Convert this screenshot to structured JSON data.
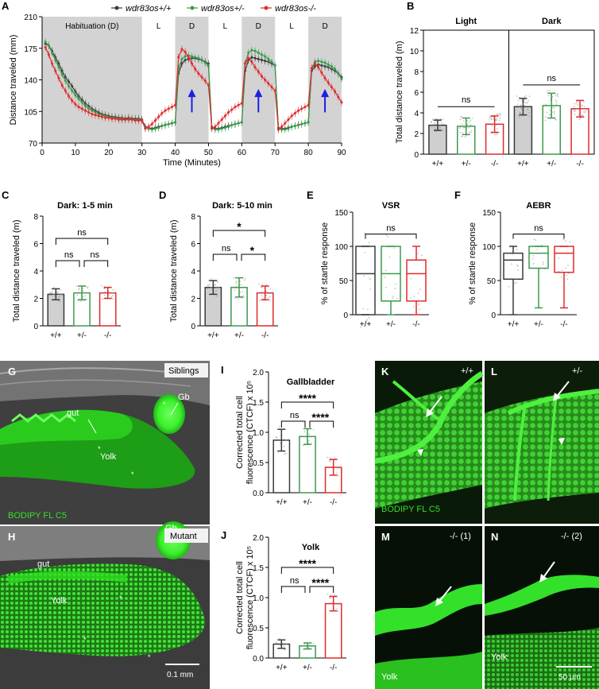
{
  "colors": {
    "wt": "#3a3a3a",
    "het": "#3c9a4c",
    "mut": "#e02a2a",
    "shade": "#d3d3d3",
    "green": "#33e02a",
    "arrow": "#1f1fe0"
  },
  "panels": {
    "A": "A",
    "B": "B",
    "C": "C",
    "D": "D",
    "E": "E",
    "F": "F",
    "G": "G",
    "H": "H",
    "I": "I",
    "J": "J",
    "K": "K",
    "L": "L",
    "M": "M",
    "N": "N"
  },
  "legend": [
    "wdr83os+/+",
    "wdr83os+/-",
    "wdr83os-/-"
  ],
  "genotypes": [
    "+/+",
    "+/-",
    "-/-"
  ],
  "chart_data": [
    {
      "panel": "A",
      "type": "line",
      "ylabel": "Distance traveled (mm)",
      "xlabel": "Time (Minutes)",
      "xlim": [
        0,
        90
      ],
      "ylim": [
        70,
        210
      ],
      "xticks": [
        0,
        10,
        20,
        30,
        40,
        50,
        60,
        70,
        80,
        90
      ],
      "yticks": [
        70,
        105,
        140,
        175,
        210
      ],
      "phases": [
        {
          "label": "Habituation (D)",
          "start": 0,
          "end": 30,
          "dark": true
        },
        {
          "label": "L",
          "start": 30,
          "end": 40,
          "dark": false
        },
        {
          "label": "D",
          "start": 40,
          "end": 50,
          "dark": true
        },
        {
          "label": "L",
          "start": 50,
          "end": 60,
          "dark": false
        },
        {
          "label": "D",
          "start": 60,
          "end": 70,
          "dark": true
        },
        {
          "label": "L",
          "start": 70,
          "end": 80,
          "dark": false
        },
        {
          "label": "D",
          "start": 80,
          "end": 90,
          "dark": true
        }
      ],
      "arrows_x": [
        45,
        65,
        85
      ],
      "series": [
        {
          "name": "wdr83os+/+",
          "values": [
            180,
            178,
            172,
            165,
            158,
            150,
            143,
            138,
            133,
            127,
            122,
            118,
            114,
            111,
            108,
            106,
            104,
            102,
            101,
            100,
            99,
            99,
            98,
            98,
            97,
            98,
            97,
            97,
            97,
            96,
            88,
            87,
            86,
            87,
            88,
            89,
            90,
            91,
            92,
            93,
            147,
            158,
            162,
            163,
            164,
            164,
            163,
            162,
            160,
            158,
            88,
            86,
            86,
            87,
            88,
            89,
            90,
            91,
            92,
            93,
            150,
            162,
            165,
            164,
            163,
            162,
            161,
            160,
            158,
            156,
            87,
            86,
            86,
            87,
            88,
            89,
            90,
            91,
            92,
            93,
            150,
            155,
            157,
            156,
            155,
            154,
            152,
            150,
            147,
            143
          ]
        },
        {
          "name": "wdr83os+/-",
          "values": [
            182,
            178,
            170,
            162,
            154,
            146,
            139,
            133,
            128,
            123,
            119,
            115,
            111,
            108,
            106,
            104,
            102,
            101,
            100,
            99,
            98,
            98,
            97,
            97,
            96,
            97,
            96,
            96,
            96,
            95,
            87,
            86,
            85,
            86,
            87,
            89,
            90,
            91,
            92,
            93,
            153,
            163,
            166,
            167,
            166,
            165,
            164,
            162,
            159,
            155,
            87,
            85,
            85,
            86,
            87,
            88,
            90,
            91,
            92,
            93,
            158,
            170,
            173,
            172,
            170,
            168,
            166,
            163,
            160,
            156,
            86,
            85,
            85,
            86,
            88,
            89,
            90,
            91,
            92,
            93,
            153,
            160,
            161,
            160,
            159,
            157,
            155,
            152,
            147,
            141
          ]
        },
        {
          "name": "wdr83os-/-",
          "values": [
            176,
            168,
            158,
            150,
            142,
            134,
            128,
            122,
            117,
            113,
            110,
            108,
            106,
            104,
            102,
            101,
            100,
            99,
            98,
            98,
            97,
            97,
            96,
            96,
            96,
            96,
            96,
            95,
            95,
            95,
            86,
            88,
            91,
            95,
            99,
            103,
            106,
            108,
            110,
            112,
            165,
            174,
            171,
            165,
            158,
            152,
            147,
            143,
            139,
            134,
            86,
            88,
            92,
            96,
            100,
            104,
            107,
            110,
            112,
            114,
            158,
            164,
            160,
            154,
            149,
            144,
            140,
            136,
            132,
            128,
            85,
            88,
            92,
            96,
            100,
            103,
            106,
            108,
            110,
            112,
            153,
            158,
            154,
            148,
            142,
            137,
            132,
            127,
            121,
            115
          ]
        }
      ]
    },
    {
      "panel": "B",
      "type": "bar",
      "ylabel": "Total distance traveled (m)",
      "ylim": [
        0,
        12
      ],
      "yticks": [
        0,
        2,
        4,
        6,
        8,
        10,
        12
      ],
      "groups": [
        {
          "title": "Light",
          "values": [
            2.8,
            2.7,
            2.9
          ],
          "errors": [
            0.5,
            0.8,
            0.8
          ],
          "sig": "ns"
        },
        {
          "title": "Dark",
          "values": [
            4.6,
            4.7,
            4.4
          ],
          "errors": [
            0.8,
            1.2,
            0.8
          ],
          "sig": "ns"
        }
      ]
    },
    {
      "panel": "C",
      "type": "bar",
      "title": "Dark: 1-5 min",
      "ylabel": "Total distance traveled (m)",
      "ylim": [
        0,
        8
      ],
      "yticks": [
        0,
        2,
        4,
        6,
        8
      ],
      "values": [
        2.3,
        2.4,
        2.4
      ],
      "errors": [
        0.4,
        0.5,
        0.4
      ],
      "sig": [
        {
          "from": 0,
          "to": 1,
          "label": "ns"
        },
        {
          "from": 1,
          "to": 2,
          "label": "ns"
        },
        {
          "from": 0,
          "to": 2,
          "label": "ns"
        }
      ]
    },
    {
      "panel": "D",
      "type": "bar",
      "title": "Dark: 5-10 min",
      "ylabel": "Total distance traveled (m)",
      "ylim": [
        0,
        8
      ],
      "yticks": [
        0,
        2,
        4,
        6,
        8
      ],
      "values": [
        2.8,
        2.8,
        2.4
      ],
      "errors": [
        0.5,
        0.7,
        0.5
      ],
      "sig": [
        {
          "from": 0,
          "to": 1,
          "label": "ns"
        },
        {
          "from": 1,
          "to": 2,
          "label": "*"
        },
        {
          "from": 0,
          "to": 2,
          "label": "*"
        }
      ]
    },
    {
      "panel": "E",
      "type": "box",
      "title": "VSR",
      "ylabel": "% of startle response",
      "ylim": [
        0,
        150
      ],
      "yticks": [
        0,
        50,
        100,
        150
      ],
      "boxes": [
        {
          "min": 0,
          "q1": 0,
          "median": 60,
          "q3": 100,
          "max": 100
        },
        {
          "min": 0,
          "q1": 20,
          "median": 60,
          "q3": 100,
          "max": 100
        },
        {
          "min": 0,
          "q1": 20,
          "median": 60,
          "q3": 80,
          "max": 100
        }
      ],
      "sig": "ns"
    },
    {
      "panel": "F",
      "type": "box",
      "title": "AEBR",
      "ylabel": "% of startle response",
      "ylim": [
        0,
        150
      ],
      "yticks": [
        0,
        50,
        100,
        150
      ],
      "boxes": [
        {
          "min": 0,
          "q1": 52,
          "median": 80,
          "q3": 90,
          "max": 100
        },
        {
          "min": 10,
          "q1": 68,
          "median": 90,
          "q3": 100,
          "max": 100
        },
        {
          "min": 10,
          "q1": 62,
          "median": 90,
          "q3": 100,
          "max": 100
        }
      ],
      "sig": "ns"
    },
    {
      "panel": "I",
      "type": "bar",
      "title": "Gallbladder",
      "ylabel": "Corrected total cell fluorescence (CTCF) x 10⁵",
      "ylim": [
        0,
        2.0
      ],
      "yticks": [
        0.0,
        0.5,
        1.0,
        1.5,
        2.0
      ],
      "values": [
        0.87,
        0.93,
        0.42
      ],
      "errors": [
        0.18,
        0.13,
        0.13
      ],
      "sig": [
        {
          "from": 0,
          "to": 1,
          "label": "ns"
        },
        {
          "from": 1,
          "to": 2,
          "label": "****"
        },
        {
          "from": 0,
          "to": 2,
          "label": "****"
        }
      ]
    },
    {
      "panel": "J",
      "type": "bar",
      "title": "Yolk",
      "ylabel": "Corrected total cell fluorescence (CTCF) x 10⁵",
      "ylim": [
        0,
        2.0
      ],
      "yticks": [
        0.0,
        0.5,
        1.0,
        1.5,
        2.0
      ],
      "values": [
        0.23,
        0.2,
        0.9
      ],
      "errors": [
        0.07,
        0.05,
        0.12
      ],
      "sig": [
        {
          "from": 0,
          "to": 1,
          "label": "ns"
        },
        {
          "from": 1,
          "to": 2,
          "label": "****"
        },
        {
          "from": 0,
          "to": 2,
          "label": "****"
        }
      ]
    }
  ],
  "images": {
    "G": {
      "tag": "Siblings",
      "labels": [
        "gut",
        "Gb",
        "Yolk"
      ],
      "stain": "BODIPY FL C5"
    },
    "H": {
      "tag": "Mutant",
      "labels": [
        "gut",
        "Gb",
        "Yolk"
      ],
      "scale": "0.1 mm"
    },
    "K": {
      "tag": "+/+",
      "stain": "BODIPY FL C5"
    },
    "L": {
      "tag": "+/-"
    },
    "M": {
      "tag": "-/- (1)",
      "label": "Yolk"
    },
    "N": {
      "tag": "-/- (2)",
      "label": "Yolk",
      "scale": "50 μm"
    }
  }
}
